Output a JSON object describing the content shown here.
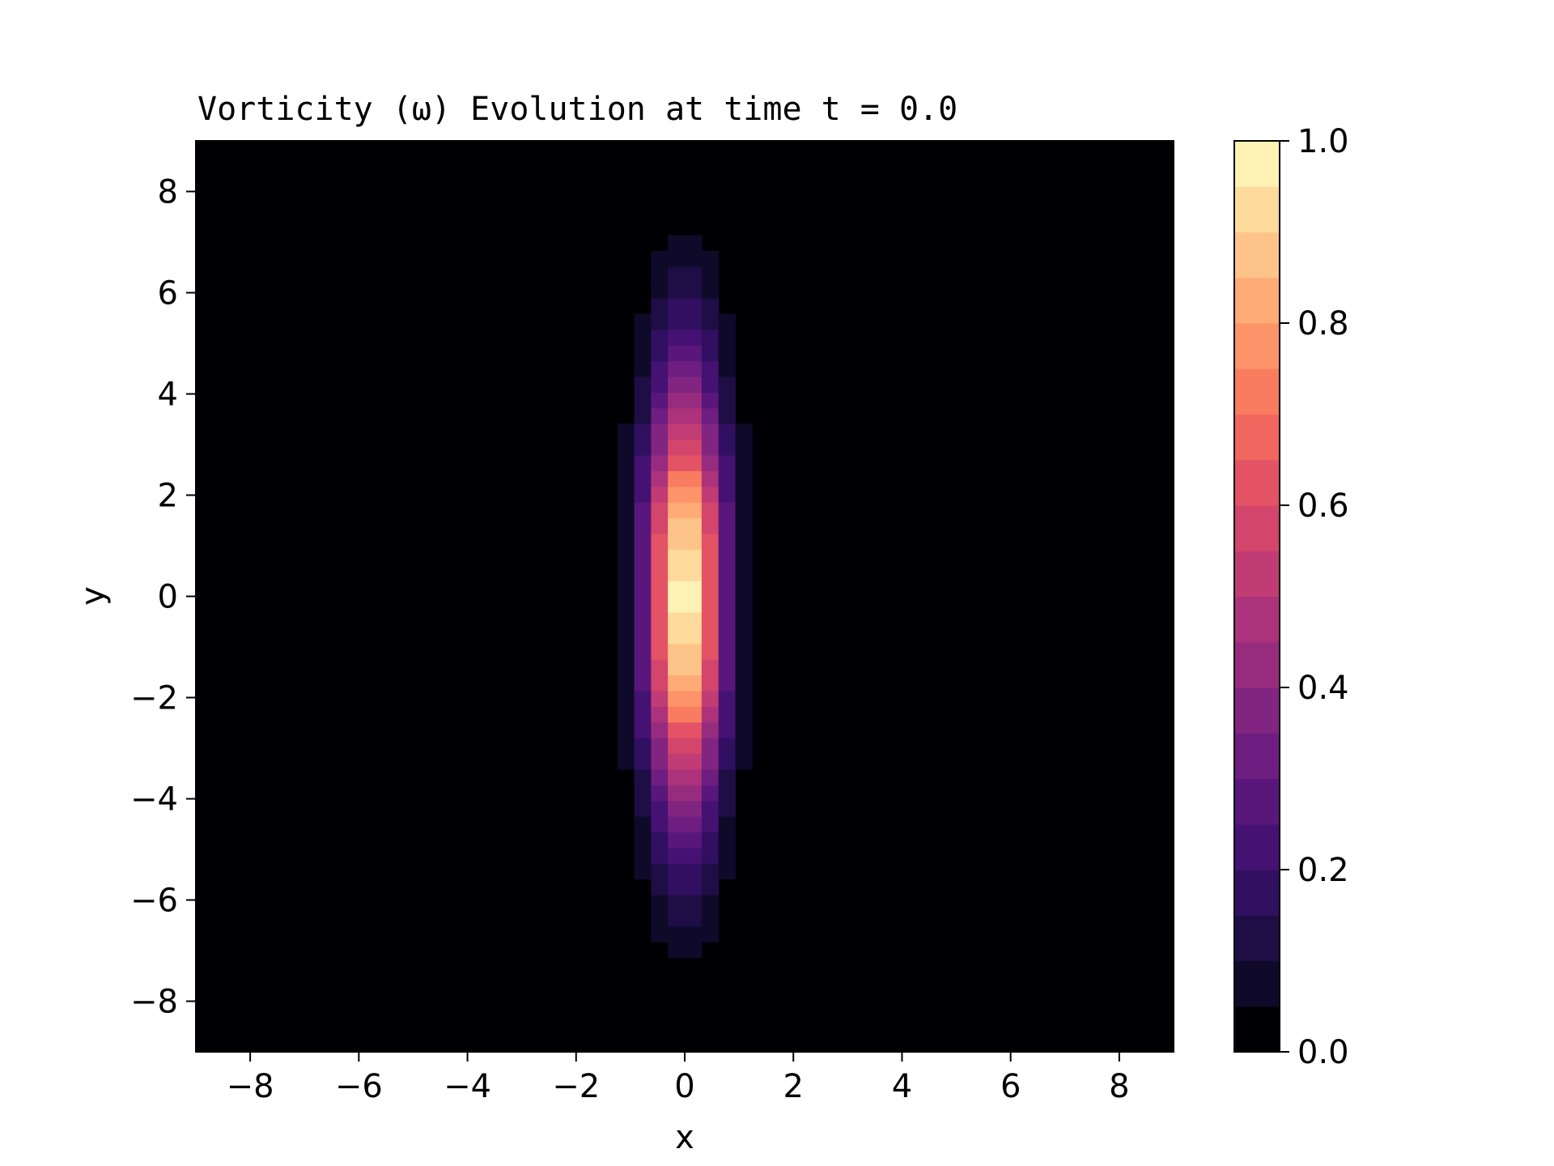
{
  "chart_data": {
    "type": "heatmap",
    "title": "Vorticity (ω) Evolution at time t = 0.0",
    "xlabel": "x",
    "ylabel": "y",
    "xlim": [
      -9,
      9
    ],
    "ylim": [
      -9,
      9
    ],
    "x_ticks": [
      -8,
      -6,
      -4,
      -2,
      0,
      2,
      4,
      6,
      8
    ],
    "y_ticks": [
      -8,
      -6,
      -4,
      -2,
      0,
      2,
      4,
      6,
      8
    ],
    "colormap": "magma",
    "colorbar": {
      "range": [
        0.0,
        1.0
      ],
      "ticks": [
        0.0,
        0.2,
        0.4,
        0.6,
        0.8,
        1.0
      ],
      "levels": 20
    },
    "grid": false,
    "field": {
      "description_of_values": "vorticity omega sampled on a square grid",
      "grid_x_range": [
        -9,
        9
      ],
      "grid_y_range": [
        -9,
        9
      ],
      "grid_cells": 58,
      "peak_value": 1.0,
      "peak_at": [
        0,
        0
      ],
      "sigma_x": 0.5,
      "sigma_y": 3.0,
      "zero_below": 0.05
    }
  }
}
